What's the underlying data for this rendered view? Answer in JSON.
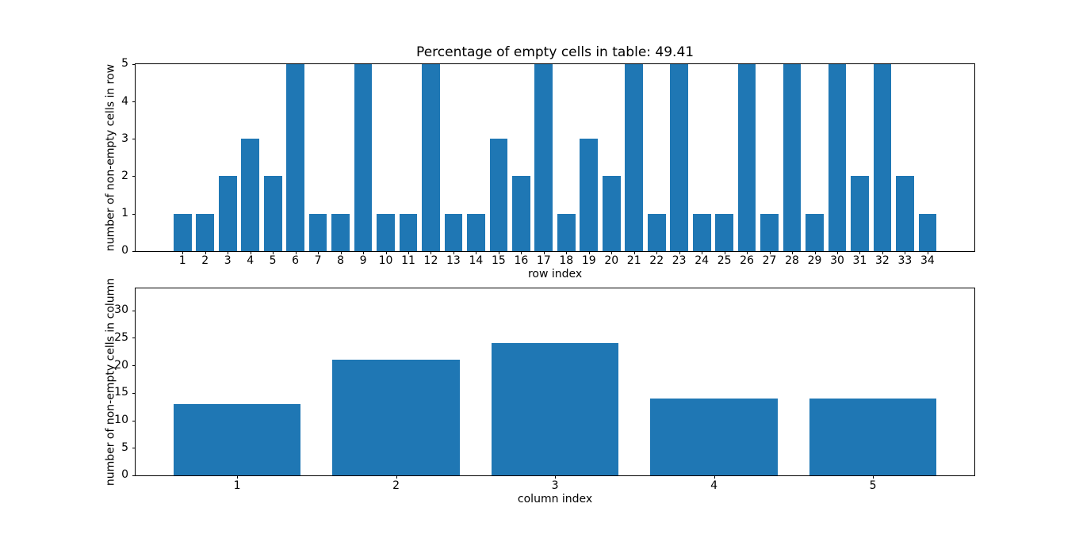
{
  "figure": {
    "background": "#ffffff",
    "text_color": "#000000"
  },
  "chart_data": [
    {
      "type": "bar",
      "title": "Percentage of empty cells in table: 49.41",
      "categories": [
        "1",
        "2",
        "3",
        "4",
        "5",
        "6",
        "7",
        "8",
        "9",
        "10",
        "11",
        "12",
        "13",
        "14",
        "15",
        "16",
        "17",
        "18",
        "19",
        "20",
        "21",
        "22",
        "23",
        "24",
        "25",
        "26",
        "27",
        "28",
        "29",
        "30",
        "31",
        "32",
        "33",
        "34"
      ],
      "values": [
        1,
        1,
        2,
        3,
        2,
        5,
        1,
        1,
        5,
        1,
        1,
        5,
        1,
        1,
        3,
        2,
        5,
        1,
        3,
        2,
        5,
        1,
        5,
        1,
        1,
        5,
        1,
        5,
        1,
        5,
        2,
        5,
        2,
        1
      ],
      "xlabel": "row index",
      "ylabel": "number of non-empty cells in row",
      "ylim": [
        0,
        5
      ],
      "yticks": [
        0,
        1,
        2,
        3,
        4,
        5
      ],
      "bar_color": "#1f77b4",
      "grid": false,
      "legend": false
    },
    {
      "type": "bar",
      "title": "",
      "categories": [
        "1",
        "2",
        "3",
        "4",
        "5"
      ],
      "values": [
        13,
        21,
        24,
        14,
        14
      ],
      "xlabel": "column index",
      "ylabel": "number of non-empty cells in column",
      "ylim": [
        0,
        34
      ],
      "yticks": [
        0,
        5,
        10,
        15,
        20,
        25,
        30
      ],
      "bar_color": "#1f77b4",
      "grid": false,
      "legend": false
    }
  ]
}
